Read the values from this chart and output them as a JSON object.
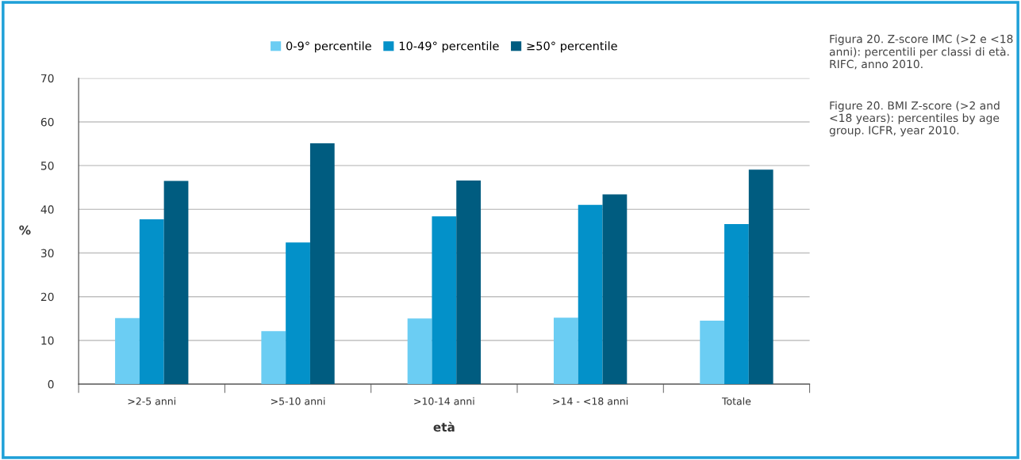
{
  "chart_data": {
    "type": "bar",
    "xlabel": "età",
    "ylabel": "%",
    "categories": [
      ">2-5 anni",
      ">5-10 anni",
      ">10-14 anni",
      ">14 - <18 anni",
      "Totale"
    ],
    "series": [
      {
        "name": "0-9° percentile",
        "color": "#6bcdf3",
        "values": [
          15.1,
          12.1,
          15.0,
          15.2,
          14.5
        ]
      },
      {
        "name": "10-49° percentile",
        "color": "#0391c9",
        "values": [
          37.7,
          32.4,
          38.4,
          41.0,
          36.6
        ]
      },
      {
        "name": "≥50° percentile",
        "color": "#005c80",
        "values": [
          46.5,
          55.1,
          46.6,
          43.4,
          49.1
        ]
      }
    ],
    "ylim": [
      0,
      70
    ],
    "yticks": [
      0,
      10,
      20,
      30,
      40,
      50,
      60,
      70
    ],
    "grid": "y",
    "legend": "top",
    "annotations": [
      "Figura 20. Z-score IMC (>2 e <18 anni): percentili per classi di età. RIFC, anno 2010.",
      "Figure 20. BMI Z-score (>2 and <18 years): percentiles by age group. ICFR, year 2010."
    ]
  }
}
